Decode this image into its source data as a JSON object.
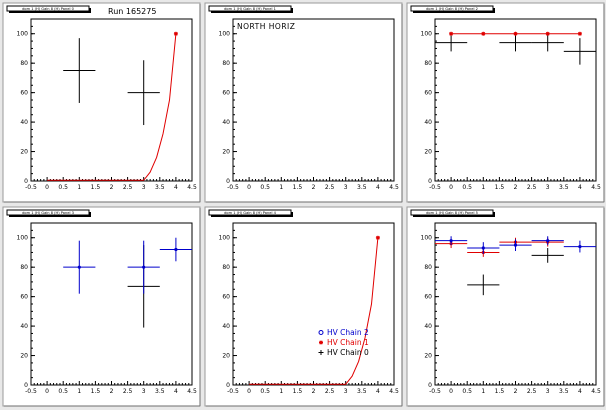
{
  "colors": {
    "black": "#000000",
    "red": "#e00000",
    "blue": "#0000cc"
  },
  "chart_data": [
    {
      "type": "scatter",
      "pad_title": "dom 1 (H) Gain 8 (H) Panel 0",
      "label": "Run 165275",
      "xlim": [
        -0.5,
        4.5
      ],
      "ylim": [
        0,
        110
      ],
      "xticks": [
        "-0.5",
        "0",
        "0.5",
        "1",
        "1.5",
        "2",
        "2.5",
        "3",
        "3.5",
        "4",
        "4.5"
      ],
      "yticks": [
        "0",
        "20",
        "40",
        "60",
        "80",
        "100"
      ],
      "series": [
        {
          "color": "#000000",
          "points": [
            {
              "x": 1,
              "y": 75,
              "xerr": 0.5,
              "ylo": 53,
              "yhi": 97
            },
            {
              "x": 3,
              "y": 60,
              "xerr": 0.5,
              "ylo": 38,
              "yhi": 82
            }
          ]
        }
      ],
      "curve": {
        "color": "#e00000",
        "points": [
          [
            0,
            0.5
          ],
          [
            1,
            0.5
          ],
          [
            2,
            0.5
          ],
          [
            3,
            0.5
          ],
          [
            3.2,
            6
          ],
          [
            3.4,
            16
          ],
          [
            3.6,
            32
          ],
          [
            3.8,
            55
          ],
          [
            4,
            100
          ]
        ],
        "marker_x": 4,
        "marker_y": 100
      }
    },
    {
      "type": "scatter",
      "pad_title": "dom 1 (H) Gain 8 (H) Panel 1",
      "label": "NORTH HORIZ",
      "xlim": [
        -0.5,
        4.5
      ],
      "ylim": [
        0,
        110
      ],
      "xticks": [
        "-0.5",
        "0",
        "0.5",
        "1",
        "1.5",
        "2",
        "2.5",
        "3",
        "3.5",
        "4",
        "4.5"
      ],
      "yticks": [
        "0",
        "20",
        "40",
        "60",
        "80",
        "100"
      ],
      "series": []
    },
    {
      "type": "scatter",
      "pad_title": "dom 1 (H) Gain 8 (H) Panel 2",
      "label": "",
      "xlim": [
        -0.5,
        4.5
      ],
      "ylim": [
        0,
        110
      ],
      "xticks": [
        "-0.5",
        "0",
        "0.5",
        "1",
        "1.5",
        "2",
        "2.5",
        "3",
        "3.5",
        "4",
        "4.5"
      ],
      "yticks": [
        "0",
        "20",
        "40",
        "60",
        "80",
        "100"
      ],
      "series": [
        {
          "color": "#000000",
          "points": [
            {
              "x": 0,
              "y": 94,
              "xerr": 0.5,
              "ylo": 88,
              "yhi": 100
            },
            {
              "x": 2,
              "y": 94,
              "xerr": 0.5,
              "ylo": 88,
              "yhi": 100
            },
            {
              "x": 3,
              "y": 94,
              "xerr": 0.5,
              "ylo": 88,
              "yhi": 100
            },
            {
              "x": 4,
              "y": 88,
              "xerr": 0.5,
              "ylo": 79,
              "yhi": 97
            }
          ]
        },
        {
          "color": "#e00000",
          "marker": "star",
          "points": [
            {
              "x": 0,
              "y": 100
            },
            {
              "x": 1,
              "y": 100
            },
            {
              "x": 2,
              "y": 100
            },
            {
              "x": 3,
              "y": 100
            },
            {
              "x": 4,
              "y": 100
            }
          ]
        }
      ],
      "curve": {
        "color": "#e00000",
        "points": [
          [
            0,
            100
          ],
          [
            1,
            100
          ],
          [
            2,
            100
          ],
          [
            3,
            100
          ],
          [
            4,
            100
          ]
        ]
      }
    },
    {
      "type": "scatter",
      "pad_title": "dom 1 (H) Gain 8 (H) Panel 3",
      "label": "",
      "xlim": [
        -0.5,
        4.5
      ],
      "ylim": [
        0,
        110
      ],
      "xticks": [
        "-0.5",
        "0",
        "0.5",
        "1",
        "1.5",
        "2",
        "2.5",
        "3",
        "3.5",
        "4",
        "4.5"
      ],
      "yticks": [
        "0",
        "20",
        "40",
        "60",
        "80",
        "100"
      ],
      "series": [
        {
          "color": "#000000",
          "points": [
            {
              "x": 3,
              "y": 67,
              "xerr": 0.5,
              "ylo": 39,
              "yhi": 95
            }
          ]
        },
        {
          "color": "#0000cc",
          "points": [
            {
              "x": 1,
              "y": 80,
              "xerr": 0.5,
              "ylo": 62,
              "yhi": 98
            },
            {
              "x": 3,
              "y": 80,
              "xerr": 0.5,
              "ylo": 62,
              "yhi": 98
            },
            {
              "x": 4,
              "y": 92,
              "xerr": 0.5,
              "ylo": 84,
              "yhi": 100
            }
          ]
        }
      ]
    },
    {
      "type": "scatter",
      "pad_title": "dom 1 (H) Gain 8 (H) Panel 4",
      "label": "",
      "xlim": [
        -0.5,
        4.5
      ],
      "ylim": [
        0,
        110
      ],
      "xticks": [
        "-0.5",
        "0",
        "0.5",
        "1",
        "1.5",
        "2",
        "2.5",
        "3",
        "3.5",
        "4",
        "4.5"
      ],
      "yticks": [
        "0",
        "20",
        "40",
        "60",
        "80",
        "100"
      ],
      "series": [],
      "curve": {
        "color": "#e00000",
        "points": [
          [
            0,
            0.5
          ],
          [
            1,
            0.5
          ],
          [
            2,
            0.5
          ],
          [
            3,
            0.5
          ],
          [
            3.2,
            6
          ],
          [
            3.4,
            16
          ],
          [
            3.6,
            32
          ],
          [
            3.8,
            55
          ],
          [
            4,
            100
          ]
        ],
        "marker_x": 4,
        "marker_y": 100
      },
      "legend": [
        {
          "label": "HV Chain 2",
          "color": "#0000cc",
          "marker": "circle"
        },
        {
          "label": "HV Chain 1",
          "color": "#e00000",
          "marker": "star"
        },
        {
          "label": "HV Chain 0",
          "color": "#000000",
          "marker": "plus"
        }
      ]
    },
    {
      "type": "scatter",
      "pad_title": "dom 1 (H) Gain 8 (H) Panel 5",
      "label": "",
      "xlim": [
        -0.5,
        4.5
      ],
      "ylim": [
        0,
        110
      ],
      "xticks": [
        "-0.5",
        "0",
        "0.5",
        "1",
        "1.5",
        "2",
        "2.5",
        "3",
        "3.5",
        "4",
        "4.5"
      ],
      "yticks": [
        "0",
        "20",
        "40",
        "60",
        "80",
        "100"
      ],
      "series": [
        {
          "color": "#000000",
          "points": [
            {
              "x": 1,
              "y": 68,
              "xerr": 0.5,
              "ylo": 61,
              "yhi": 75
            },
            {
              "x": 3,
              "y": 88,
              "xerr": 0.5,
              "ylo": 83,
              "yhi": 93
            }
          ]
        },
        {
          "color": "#e00000",
          "points": [
            {
              "x": 0,
              "y": 96,
              "xerr": 0.5,
              "ylo": 93,
              "yhi": 99
            },
            {
              "x": 1,
              "y": 90,
              "xerr": 0.5,
              "ylo": 87,
              "yhi": 93
            },
            {
              "x": 2,
              "y": 97,
              "xerr": 0.5,
              "ylo": 94,
              "yhi": 100
            },
            {
              "x": 3,
              "y": 97,
              "xerr": 0.5,
              "ylo": 94,
              "yhi": 100
            }
          ]
        },
        {
          "color": "#0000cc",
          "points": [
            {
              "x": 0,
              "y": 98,
              "xerr": 0.5,
              "ylo": 95,
              "yhi": 101
            },
            {
              "x": 1,
              "y": 93,
              "xerr": 0.5,
              "ylo": 89,
              "yhi": 97
            },
            {
              "x": 2,
              "y": 95,
              "xerr": 0.5,
              "ylo": 91,
              "yhi": 99
            },
            {
              "x": 3,
              "y": 98,
              "xerr": 0.5,
              "ylo": 95,
              "yhi": 101
            },
            {
              "x": 4,
              "y": 94,
              "xerr": 0.5,
              "ylo": 90,
              "yhi": 98
            }
          ]
        }
      ]
    }
  ]
}
